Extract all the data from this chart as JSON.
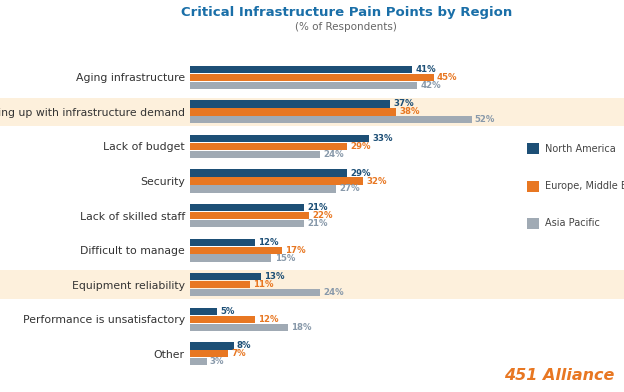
{
  "title": "Critical Infrastructure Pain Points by Region",
  "subtitle": "(% of Respondents)",
  "categories": [
    "Aging infrastructure",
    "Keeping up with infrastructure demand",
    "Lack of budget",
    "Security",
    "Lack of skilled staff",
    "Difficult to manage",
    "Equipment reliability",
    "Performance is unsatisfactory",
    "Other"
  ],
  "series": {
    "North America": [
      41,
      37,
      33,
      29,
      21,
      12,
      13,
      5,
      8
    ],
    "Europe, Middle East and Africa": [
      45,
      38,
      29,
      32,
      22,
      17,
      11,
      12,
      7
    ],
    "Asia Pacific": [
      42,
      52,
      24,
      27,
      21,
      15,
      24,
      18,
      3
    ]
  },
  "colors": {
    "North America": "#1d4f76",
    "Europe, Middle East and Africa": "#e87722",
    "Asia Pacific": "#a0aab4"
  },
  "highlighted_rows": [
    1,
    6
  ],
  "highlight_color": "#fdf0dc",
  "title_color": "#1a6fa8",
  "subtitle_color": "#666666",
  "label_color_na": "#1d4f76",
  "label_color_emea": "#e87722",
  "label_color_apac": "#8899aa",
  "watermark": "451 Alliance",
  "watermark_color": "#e87722",
  "bar_height": 0.21,
  "bar_gap": 0.02,
  "xlim": 60
}
